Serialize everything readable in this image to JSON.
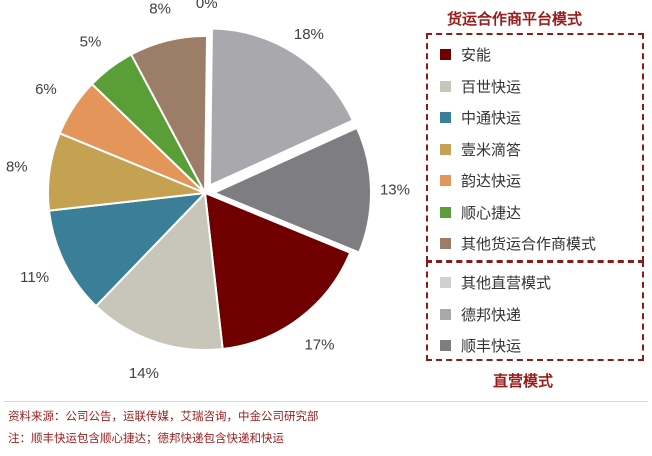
{
  "chart_data": {
    "type": "pie",
    "slices": [
      {
        "label": "其他直营模式",
        "value": 0,
        "display": "0%",
        "color": "#d0d0d0"
      },
      {
        "label": "德邦快递",
        "value": 18,
        "display": "18%",
        "color": "#a9a9ad"
      },
      {
        "label": "顺丰快运",
        "value": 13,
        "display": "13%",
        "color": "#7e7e82"
      },
      {
        "label": "安能",
        "value": 17,
        "display": "17%",
        "color": "#700000"
      },
      {
        "label": "百世快运",
        "value": 14,
        "display": "14%",
        "color": "#c8c6b8"
      },
      {
        "label": "中通快运",
        "value": 11,
        "display": "11%",
        "color": "#3a7e98"
      },
      {
        "label": "壹米滴答",
        "value": 8,
        "display": "8%",
        "color": "#c4a252"
      },
      {
        "label": "韵达快运",
        "value": 6,
        "display": "6%",
        "color": "#e49559"
      },
      {
        "label": "顺心捷达",
        "value": 5,
        "display": "5%",
        "color": "#5a9e38"
      },
      {
        "label": "其他货运合作商模式",
        "value": 8,
        "display": "8%",
        "color": "#9c7e68"
      }
    ],
    "exploded": [
      "其他直营模式",
      "德邦快递",
      "顺丰快运"
    ]
  },
  "legend": {
    "group1_title": "货运合作商平台模式",
    "group1_items": [
      {
        "label": "安能",
        "color": "#700000"
      },
      {
        "label": "百世快运",
        "color": "#c8c6b8"
      },
      {
        "label": "中通快运",
        "color": "#3a7e98"
      },
      {
        "label": "壹米滴答",
        "color": "#c4a252"
      },
      {
        "label": "韵达快运",
        "color": "#e49559"
      },
      {
        "label": "顺心捷达",
        "color": "#5a9e38"
      },
      {
        "label": "其他货运合作商模式",
        "color": "#9c7e68"
      }
    ],
    "group2_title": "直营模式",
    "group2_items": [
      {
        "label": "其他直营模式",
        "color": "#d0d0d0"
      },
      {
        "label": "德邦快递",
        "color": "#a9a9ad"
      },
      {
        "label": "顺丰快运",
        "color": "#7e7e82"
      }
    ]
  },
  "footer": {
    "source": "资料来源：公司公告，运联传媒，艾瑞咨询，中金公司研究部",
    "note": "注：顺丰快运包含顺心捷达；德邦快递包含快递和快运"
  }
}
